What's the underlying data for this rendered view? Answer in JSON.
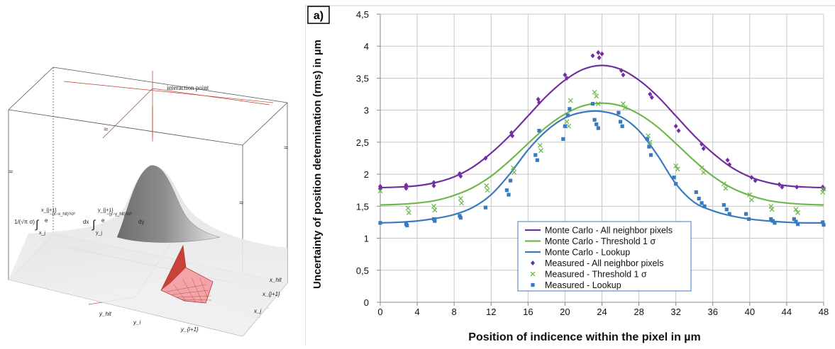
{
  "left_figure": {
    "interaction_label": "interaction point",
    "break_marks": "≈",
    "formula_prefix": "1/(√π σ)",
    "formula_int1_lower": "x_j",
    "formula_int1_upper": "x_{j+1}",
    "formula_exp1": "−(x−x_hit)²/σ²",
    "formula_dx": "dx",
    "formula_int2_lower": "y_j",
    "formula_int2_upper": "y_{j+1}",
    "formula_exp2": "−(y−y_hit)²/σ²",
    "formula_dy": "dy",
    "axis_y_hit": "y_hit",
    "axis_y_i": "y_i",
    "axis_y_i1": "y_{i+1}",
    "axis_x_hit": "x_hit",
    "axis_x_j1": "x_{j+1}",
    "axis_x_j": "x_j"
  },
  "chart_data": {
    "type": "scatter",
    "panel_label": "a)",
    "xlabel": "Position of indicence within the pixel in µm",
    "ylabel": "Uncertainty of position determination (rms) in µm",
    "xlim": [
      0,
      48
    ],
    "ylim": [
      0,
      4.5
    ],
    "x_ticks": [
      "0",
      "4",
      "8",
      "12",
      "16",
      "20",
      "24",
      "28",
      "32",
      "36",
      "40",
      "44",
      "48"
    ],
    "y_ticks": [
      "0",
      "0,5",
      "1",
      "1,5",
      "2",
      "2,5",
      "3",
      "3,5",
      "4",
      "4,5"
    ],
    "grid": true,
    "legend_position": "bottom-center",
    "colors": {
      "purple": "#7030a0",
      "green": "#70b84e",
      "blue": "#3a7bc0"
    },
    "series": [
      {
        "name": "Monte Carlo - All neighbor pixels",
        "kind": "line",
        "color": "#7030a0",
        "x": [
          0,
          2,
          4,
          6,
          8,
          10,
          12,
          14,
          16,
          18,
          20,
          22,
          24,
          26,
          28,
          30,
          32,
          34,
          36,
          38,
          40,
          42,
          44,
          46,
          48
        ],
        "y": [
          1.79,
          1.8,
          1.82,
          1.87,
          1.96,
          2.11,
          2.33,
          2.6,
          2.91,
          3.22,
          3.47,
          3.64,
          3.7,
          3.64,
          3.47,
          3.22,
          2.91,
          2.6,
          2.33,
          2.11,
          1.96,
          1.87,
          1.82,
          1.8,
          1.79
        ]
      },
      {
        "name": "Monte Carlo - Threshold 1 σ",
        "kind": "line",
        "color": "#70b84e",
        "x": [
          0,
          2,
          4,
          6,
          8,
          10,
          12,
          14,
          16,
          18,
          20,
          22,
          24,
          26,
          28,
          30,
          32,
          34,
          36,
          38,
          40,
          42,
          44,
          46,
          48
        ],
        "y": [
          1.52,
          1.53,
          1.55,
          1.59,
          1.67,
          1.79,
          1.97,
          2.21,
          2.48,
          2.74,
          2.94,
          3.07,
          3.11,
          3.07,
          2.94,
          2.74,
          2.48,
          2.21,
          1.97,
          1.79,
          1.67,
          1.59,
          1.55,
          1.53,
          1.52
        ]
      },
      {
        "name": "Monte Carlo - Lookup",
        "kind": "line",
        "color": "#3a7bc0",
        "x": [
          0,
          2,
          4,
          6,
          8,
          10,
          12,
          14,
          16,
          18,
          20,
          22,
          24,
          26,
          28,
          30,
          32,
          34,
          36,
          38,
          40,
          42,
          44,
          46,
          48
        ],
        "y": [
          1.24,
          1.25,
          1.27,
          1.31,
          1.37,
          1.48,
          1.68,
          2.0,
          2.38,
          2.68,
          2.88,
          2.97,
          2.98,
          2.9,
          2.68,
          2.3,
          1.85,
          1.56,
          1.43,
          1.35,
          1.3,
          1.27,
          1.25,
          1.24,
          1.24
        ]
      },
      {
        "name": "Measured - All neighbor pixels",
        "kind": "diamond",
        "color": "#7030a0",
        "x": [
          0,
          0,
          2.8,
          2.8,
          5.8,
          5.8,
          8.6,
          8.7,
          11.4,
          14.2,
          14.3,
          17.1,
          17.2,
          20.0,
          20.2,
          23.0,
          23.6,
          23.7,
          24.0,
          26.1,
          26.3,
          29.2,
          29.4,
          32.0,
          32.3,
          34.8,
          35.0,
          37.6,
          37.8,
          40.2,
          40.6,
          43.2,
          43.5,
          45.1,
          47.9,
          48.0
        ],
        "y": [
          1.81,
          1.78,
          1.83,
          1.78,
          1.87,
          1.82,
          2.01,
          1.97,
          2.25,
          2.65,
          2.6,
          3.17,
          3.12,
          3.55,
          3.5,
          3.85,
          3.9,
          3.82,
          3.88,
          3.62,
          3.55,
          3.25,
          3.2,
          2.75,
          2.68,
          2.47,
          2.4,
          2.22,
          2.15,
          1.95,
          1.9,
          1.84,
          1.8,
          1.8,
          1.8,
          1.77
        ]
      },
      {
        "name": "Measured - Threshold 1 σ",
        "kind": "cross",
        "color": "#70b84e",
        "x": [
          0,
          3.0,
          3.1,
          5.8,
          5.9,
          8.7,
          8.8,
          11.5,
          11.6,
          14.4,
          14.5,
          17.3,
          17.4,
          20.2,
          20.4,
          20.6,
          23.2,
          23.4,
          23.6,
          26.3,
          26.5,
          29.0,
          29.2,
          32.0,
          32.2,
          34.8,
          35.0,
          37.2,
          37.4,
          40.0,
          40.2,
          42.3,
          42.4,
          45.0,
          45.2,
          48.0,
          47.9
        ],
        "y": [
          1.74,
          1.47,
          1.4,
          1.5,
          1.44,
          1.62,
          1.55,
          1.82,
          1.75,
          2.1,
          2.03,
          2.45,
          2.37,
          2.82,
          2.75,
          3.15,
          3.28,
          3.22,
          3.1,
          3.1,
          3.04,
          2.6,
          2.5,
          2.13,
          2.08,
          2.1,
          2.03,
          1.85,
          1.78,
          1.68,
          1.6,
          1.5,
          1.45,
          1.45,
          1.4,
          1.77,
          1.72
        ]
      },
      {
        "name": "Measured - Lookup",
        "kind": "square",
        "color": "#3a7bc0",
        "x": [
          0,
          2.8,
          2.9,
          5.8,
          5.9,
          8.6,
          8.7,
          11.4,
          13.7,
          13.9,
          14.1,
          16.8,
          17.0,
          17.2,
          19.8,
          20.0,
          20.3,
          20.5,
          23.0,
          23.2,
          23.4,
          23.6,
          25.8,
          26.0,
          26.2,
          28.9,
          29.1,
          29.3,
          31.8,
          32.0,
          34.2,
          34.5,
          34.8,
          35.1,
          37.2,
          37.5,
          37.8,
          39.6,
          39.9,
          42.3,
          42.5,
          42.7,
          44.8,
          45.0,
          45.2,
          47.9,
          48.0
        ],
        "y": [
          1.24,
          1.22,
          1.2,
          1.3,
          1.27,
          1.35,
          1.32,
          1.48,
          1.75,
          1.68,
          1.9,
          2.3,
          2.22,
          2.68,
          2.55,
          2.75,
          2.92,
          3.02,
          3.1,
          2.85,
          2.78,
          2.72,
          2.96,
          2.82,
          2.75,
          2.55,
          2.43,
          2.3,
          1.95,
          1.85,
          1.72,
          1.62,
          1.55,
          1.5,
          1.52,
          1.45,
          1.38,
          1.38,
          1.3,
          1.3,
          1.27,
          1.24,
          1.3,
          1.26,
          1.22,
          1.25,
          1.21
        ]
      }
    ]
  }
}
